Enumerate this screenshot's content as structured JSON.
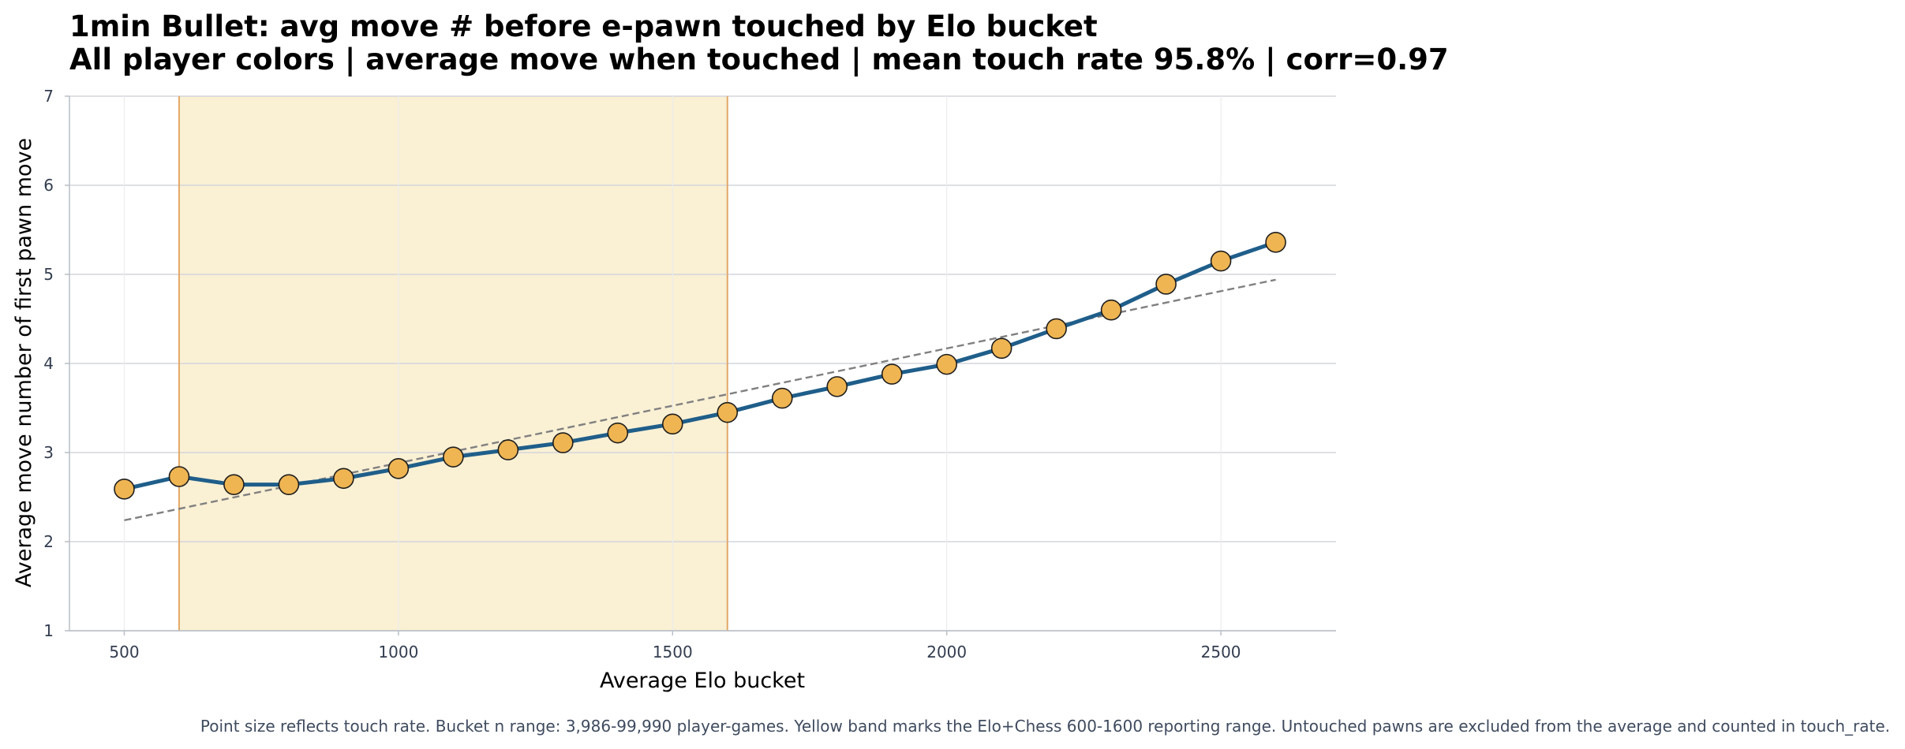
{
  "chart_data": {
    "type": "line",
    "title": "1min Bullet: avg move # before e-pawn touched by Elo bucket",
    "subtitle": "All player colors | average move when touched | mean touch rate 95.8% | corr=0.97",
    "xlabel": "Average Elo bucket",
    "ylabel": "Average move number of first pawn move",
    "xlim": [
      400,
      2710
    ],
    "ylim": [
      1,
      7
    ],
    "xticks": [
      500,
      1000,
      1500,
      2000,
      2500
    ],
    "yticks": [
      1,
      2,
      3,
      4,
      5,
      6,
      7
    ],
    "grid": true,
    "band": {
      "x": [
        600,
        1600
      ],
      "color": "#faf0d4",
      "edge_color": "#e3a868"
    },
    "series": [
      {
        "color": "#1f5e8a",
        "marker_color": "#efb552",
        "x": [
          500,
          600,
          700,
          800,
          900,
          1000,
          1100,
          1200,
          1300,
          1400,
          1500,
          1600,
          1700,
          1800,
          1900,
          2000,
          2100,
          2200,
          2300,
          2400,
          2500,
          2600
        ],
        "y": [
          2.59,
          2.73,
          2.64,
          2.64,
          2.71,
          2.82,
          2.95,
          3.03,
          3.11,
          3.22,
          3.32,
          3.45,
          3.61,
          3.74,
          3.88,
          3.99,
          4.17,
          4.39,
          4.6,
          4.89,
          5.15,
          5.36
        ]
      }
    ],
    "trendline": {
      "x": [
        500,
        2600
      ],
      "y": [
        2.24,
        4.94
      ],
      "color": "#808080",
      "style": "dashed"
    }
  },
  "caption": "Point size reflects touch rate. Bucket n range: 3,986-99,990 player-games. Yellow band marks the Elo+Chess 600-1600 reporting range. Untouched pawns are excluded from the average and counted in touch_rate."
}
